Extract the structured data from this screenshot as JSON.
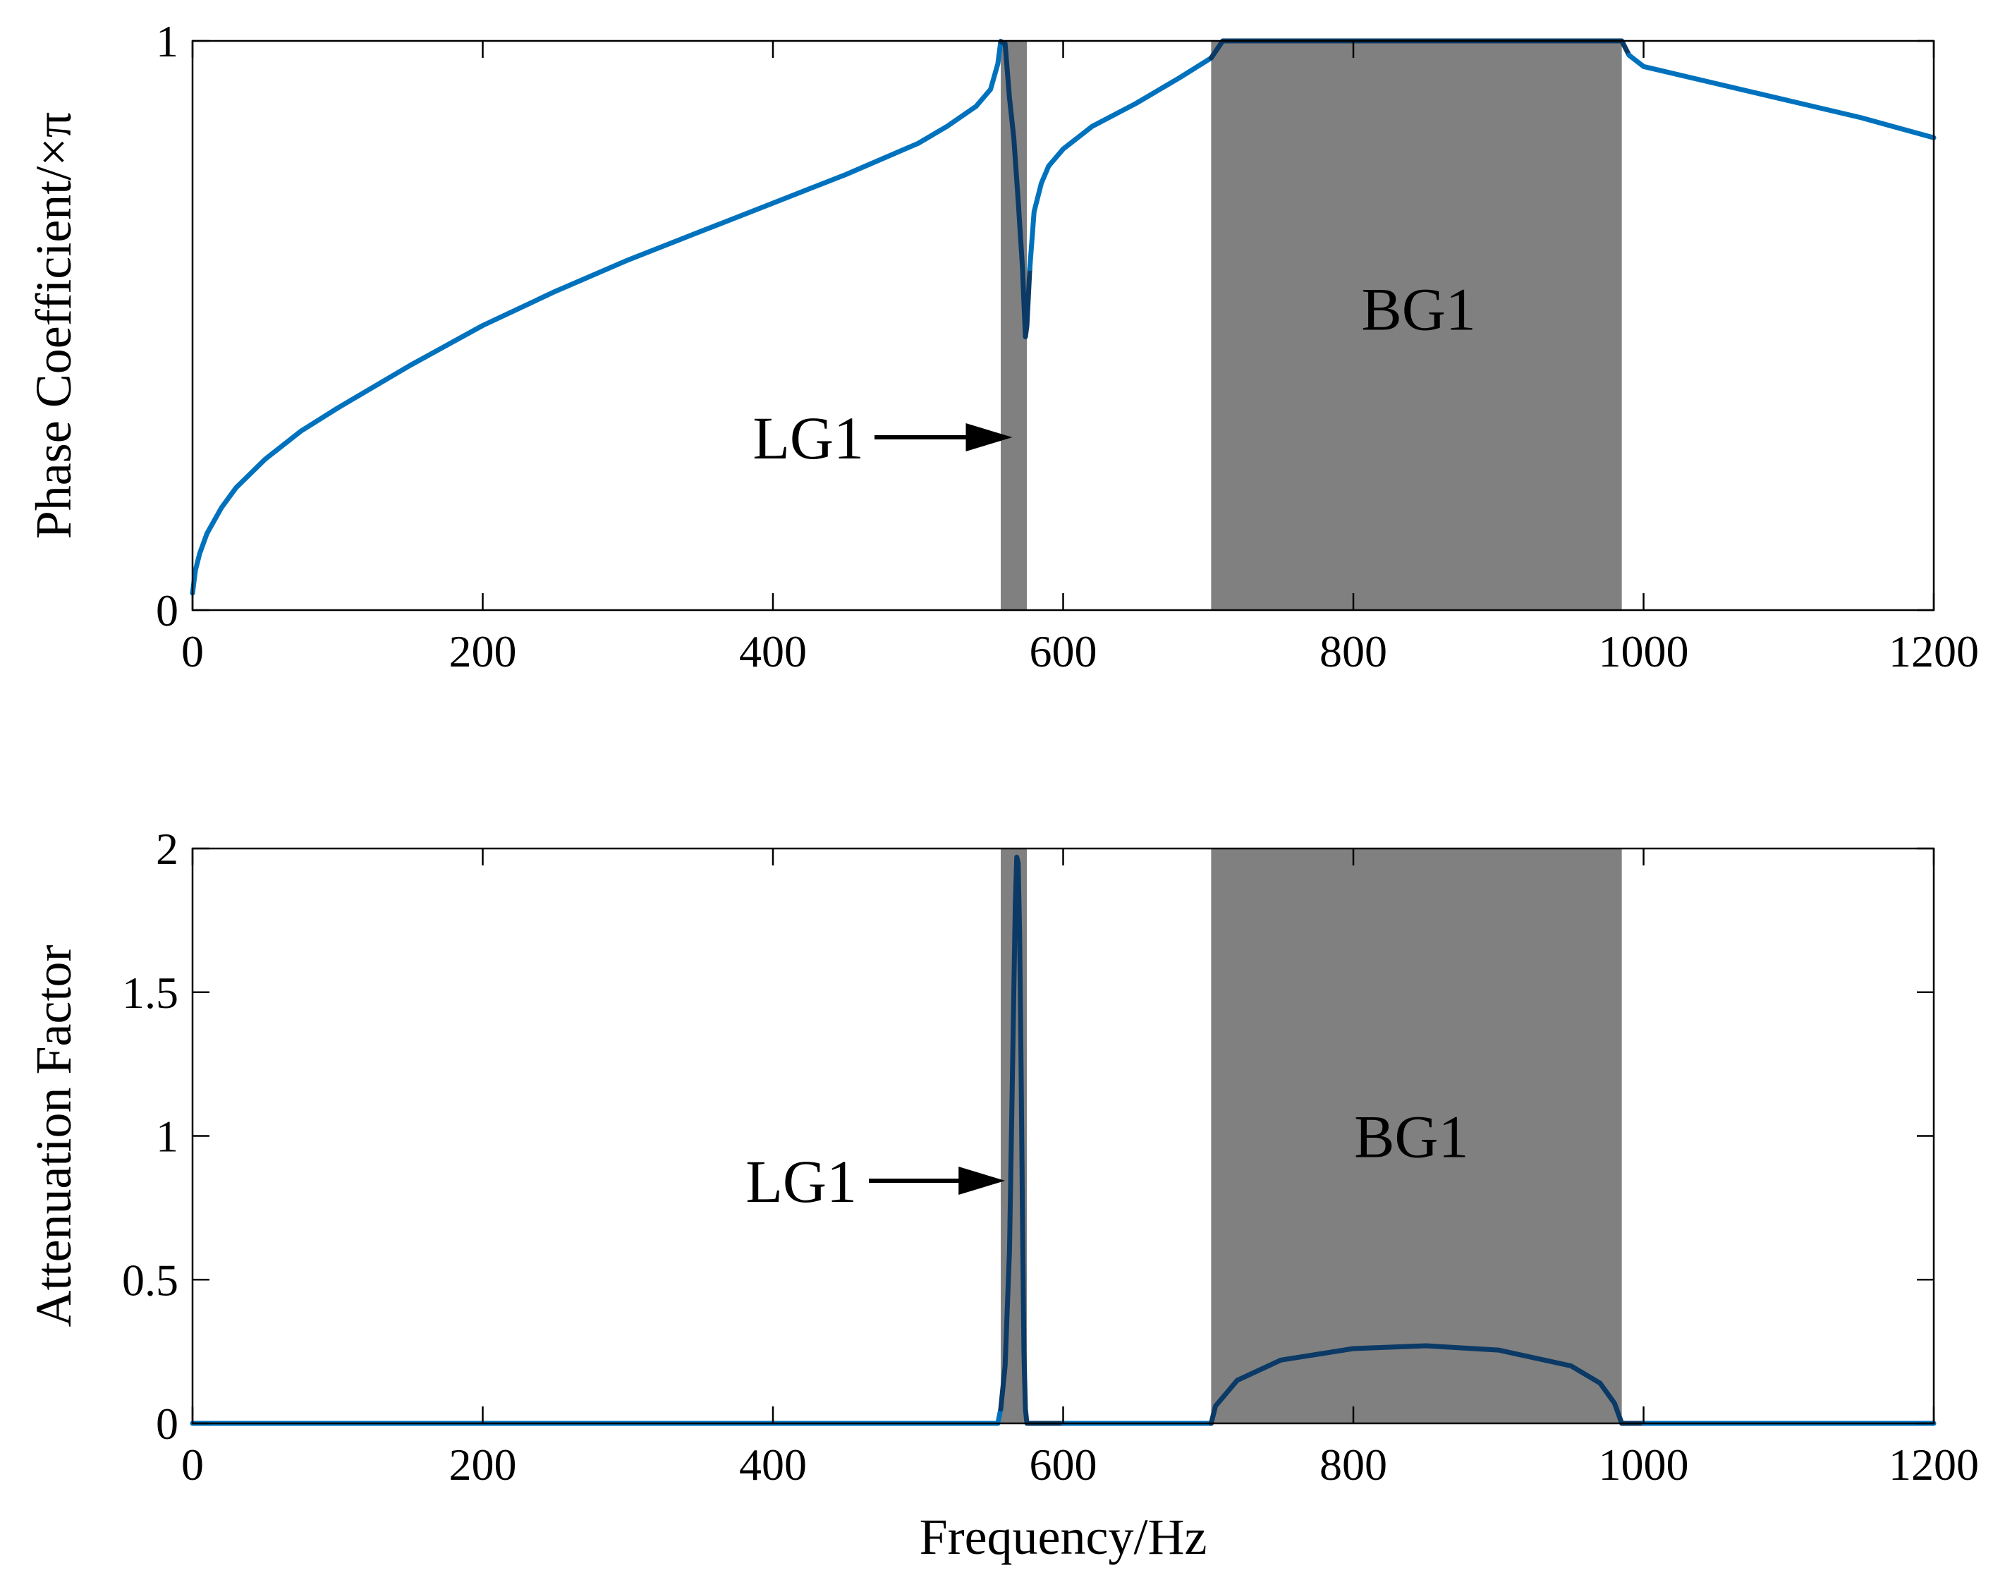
{
  "colors": {
    "curve_pass": "#0072BD",
    "curve_gap": "#0B3A66",
    "gap_shade": "#808080",
    "axis": "#000000",
    "background": "#FFFFFF"
  },
  "chart_data": [
    {
      "type": "line",
      "ylabel": "Phase Coefficient/×π",
      "xlabel": "",
      "xlim": [
        0,
        1200
      ],
      "ylim": [
        0,
        1
      ],
      "xticks": [
        0,
        200,
        400,
        600,
        800,
        1000,
        1200
      ],
      "yticks": [
        0,
        1
      ],
      "grid": false,
      "shaded_bands": [
        {
          "label": "LG1",
          "x_range": [
            557,
            575
          ]
        },
        {
          "label": "BG1",
          "x_range": [
            702,
            985
          ]
        }
      ],
      "annotations": [
        {
          "text": "LG1",
          "type": "arrow",
          "target": [
            565,
            0.31
          ]
        },
        {
          "text": "BG1",
          "type": "text",
          "at": [
            845,
            0.53
          ]
        }
      ],
      "series": [
        {
          "x": [
            0,
            2,
            5,
            10,
            20,
            30,
            50,
            75,
            100,
            150,
            200,
            250,
            300,
            350,
            400,
            450,
            500,
            520,
            540,
            550,
            555,
            557,
            560,
            563,
            566,
            569,
            572,
            573,
            574,
            575,
            577,
            580,
            585,
            590,
            600,
            620,
            650,
            680,
            702,
            710,
            750,
            800,
            850,
            900,
            950,
            985,
            990,
            1000,
            1050,
            1100,
            1150,
            1200
          ],
          "y": [
            0.03,
            0.07,
            0.1,
            0.135,
            0.18,
            0.215,
            0.265,
            0.315,
            0.355,
            0.43,
            0.5,
            0.56,
            0.615,
            0.665,
            0.715,
            0.765,
            0.82,
            0.85,
            0.885,
            0.915,
            0.96,
            0.999,
            0.995,
            0.9,
            0.83,
            0.72,
            0.6,
            0.54,
            0.48,
            0.5,
            0.6,
            0.7,
            0.75,
            0.78,
            0.81,
            0.85,
            0.89,
            0.935,
            0.97,
            1.0,
            1.0,
            1.0,
            1.0,
            1.0,
            1.0,
            1.0,
            0.975,
            0.955,
            0.925,
            0.895,
            0.865,
            0.83
          ]
        }
      ]
    },
    {
      "type": "line",
      "ylabel": "Attenuation Factor",
      "xlabel": "Frequency/Hz",
      "xlim": [
        0,
        1200
      ],
      "ylim": [
        0,
        2
      ],
      "xticks": [
        0,
        200,
        400,
        600,
        800,
        1000,
        1200
      ],
      "yticks": [
        0,
        0.5,
        1,
        1.5,
        2
      ],
      "ytick_labels": [
        "0",
        "0.5",
        "1",
        "1.5",
        "2"
      ],
      "grid": false,
      "shaded_bands": [
        {
          "label": "LG1",
          "x_range": [
            557,
            575
          ]
        },
        {
          "label": "BG1",
          "x_range": [
            702,
            985
          ]
        }
      ],
      "annotations": [
        {
          "text": "LG1",
          "type": "arrow",
          "target": [
            560,
            0.84
          ]
        },
        {
          "text": "BG1",
          "type": "text",
          "at": [
            840,
            1.0
          ]
        }
      ],
      "series": [
        {
          "x": [
            0,
            100,
            200,
            300,
            400,
            500,
            555,
            557,
            560,
            563,
            565,
            567,
            568,
            569,
            570,
            571,
            572,
            573,
            574,
            575,
            600,
            650,
            702,
            705,
            720,
            750,
            800,
            850,
            900,
            950,
            970,
            980,
            985,
            1000,
            1100,
            1200
          ],
          "y": [
            0,
            0,
            0,
            0,
            0,
            0,
            0,
            0.05,
            0.2,
            0.6,
            1.2,
            1.8,
            1.97,
            1.95,
            1.7,
            1.25,
            0.7,
            0.25,
            0.05,
            0,
            0,
            0,
            0,
            0.06,
            0.15,
            0.22,
            0.26,
            0.27,
            0.255,
            0.2,
            0.14,
            0.07,
            0,
            0,
            0,
            0
          ]
        }
      ]
    }
  ]
}
